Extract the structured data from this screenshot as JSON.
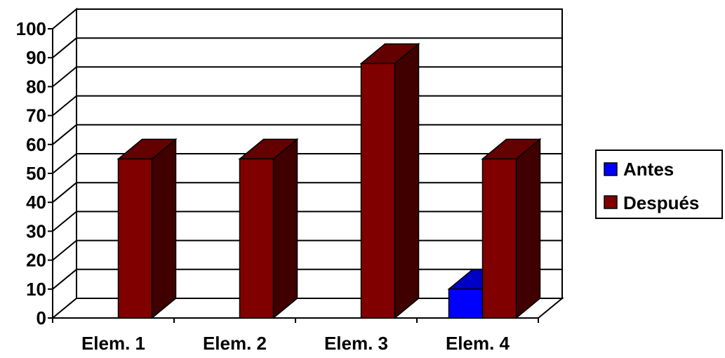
{
  "chart_data": {
    "type": "bar",
    "categories": [
      "Elem. 1",
      "Elem. 2",
      "Elem. 3",
      "Elem. 4"
    ],
    "series": [
      {
        "name": "Antes",
        "values": [
          0,
          0,
          0,
          10
        ],
        "color": "#0000ff"
      },
      {
        "name": "Después",
        "values": [
          55,
          55,
          88,
          55
        ],
        "color": "#800000"
      }
    ],
    "ylim": [
      0,
      100
    ],
    "yticks": [
      "0",
      "10",
      "20",
      "30",
      "40",
      "50",
      "60",
      "70",
      "80",
      "90",
      "100"
    ],
    "grid": true,
    "three_d": true,
    "legend_position": "right"
  }
}
